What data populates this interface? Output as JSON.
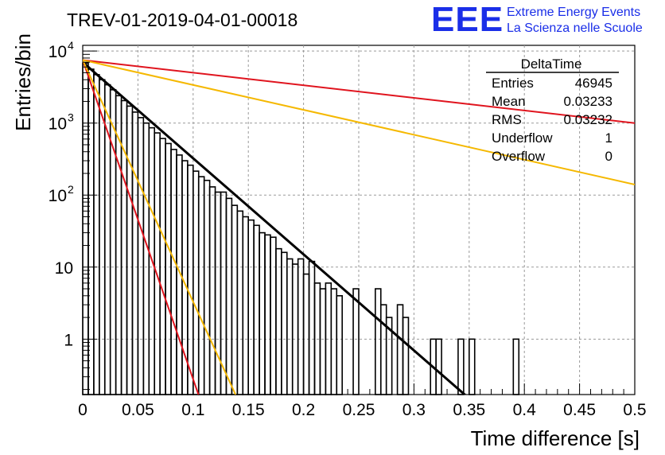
{
  "logo": {
    "mark": "EEE",
    "line1": "Extreme Energy Events",
    "line2": "La Scienza nelle Scuole",
    "color": "#1a2ee8"
  },
  "colors": {
    "histogram": "#000000",
    "fit": "#000000",
    "red": "#e0141e",
    "orange": "#f5b800",
    "grid": "#9a9a9a"
  },
  "chart_data": {
    "type": "histogram",
    "title": "TREV-01-2019-04-01-00018",
    "xlabel": "Time difference [s]",
    "ylabel": "Entries/bin",
    "xlim": [
      0,
      0.5
    ],
    "ylim": [
      0.17,
      12000
    ],
    "y_scale": "log",
    "grid": true,
    "bin_width": 0.005,
    "x_ticks": [
      {
        "value": 0,
        "label": "0"
      },
      {
        "value": 0.05,
        "label": "0.05"
      },
      {
        "value": 0.1,
        "label": "0.1"
      },
      {
        "value": 0.15,
        "label": "0.15"
      },
      {
        "value": 0.2,
        "label": "0.2"
      },
      {
        "value": 0.25,
        "label": "0.25"
      },
      {
        "value": 0.3,
        "label": "0.3"
      },
      {
        "value": 0.35,
        "label": "0.35"
      },
      {
        "value": 0.4,
        "label": "0.4"
      },
      {
        "value": 0.45,
        "label": "0.45"
      },
      {
        "value": 0.5,
        "label": "0.5"
      }
    ],
    "y_ticks": [
      {
        "value": 1,
        "label": "1"
      },
      {
        "value": 10,
        "label": "10"
      },
      {
        "value": 100,
        "label": "10",
        "exp": "2"
      },
      {
        "value": 1000,
        "label": "10",
        "exp": "3"
      },
      {
        "value": 10000,
        "label": "10",
        "exp": "4"
      }
    ],
    "bin_counts": [
      6800,
      5600,
      4700,
      4000,
      3400,
      2900,
      2400,
      2050,
      1720,
      1420,
      1190,
      1000,
      860,
      730,
      610,
      520,
      430,
      360,
      300,
      260,
      215,
      180,
      160,
      130,
      110,
      110,
      90,
      72,
      60,
      50,
      45,
      38,
      30,
      28,
      26,
      18,
      16,
      13,
      11,
      13,
      8,
      12,
      6,
      5,
      6,
      5,
      4,
      0,
      0,
      5,
      0,
      0,
      0,
      5,
      3,
      2,
      0,
      3,
      2,
      0,
      0,
      0,
      0,
      1,
      1,
      0,
      0,
      0,
      1,
      0,
      1,
      0,
      0,
      0,
      0,
      0,
      0,
      0,
      1,
      0,
      0,
      0,
      0,
      0,
      0,
      0,
      0,
      0,
      0,
      0,
      0,
      0,
      0,
      0,
      0,
      0,
      0,
      0,
      0,
      0
    ],
    "series": [
      {
        "color": "#000000",
        "x": [
          0,
          0.35
        ],
        "y": [
          7000,
          0.15
        ]
      },
      {
        "color": "#e0141e",
        "x": [
          0,
          0.5
        ],
        "y": [
          7500,
          1000
        ]
      },
      {
        "color": "#f5b800",
        "x": [
          0,
          0.5
        ],
        "y": [
          7500,
          140
        ]
      },
      {
        "color": "#e0141e",
        "x": [
          0,
          0.11
        ],
        "y": [
          7500,
          0.1
        ]
      },
      {
        "color": "#f5b800",
        "x": [
          0,
          0.14
        ],
        "y": [
          7500,
          0.15
        ]
      }
    ],
    "stats": {
      "title": "DeltaTime",
      "rows": [
        {
          "label": "Entries",
          "value": "46945"
        },
        {
          "label": "Mean",
          "value": "0.03233"
        },
        {
          "label": "RMS",
          "value": "0.03232"
        },
        {
          "label": "Underflow",
          "value": "1"
        },
        {
          "label": "Overflow",
          "value": "0"
        }
      ]
    }
  }
}
